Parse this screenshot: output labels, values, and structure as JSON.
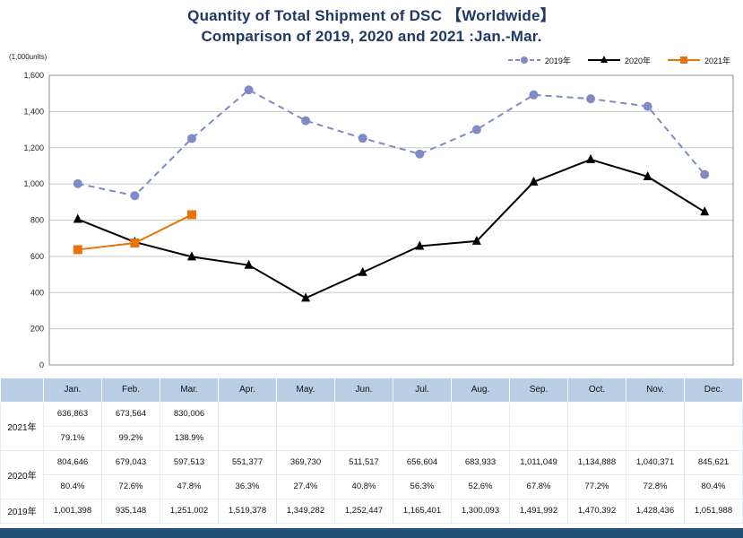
{
  "title": {
    "line1": "Quantity of Total Shipment of DSC 【Worldwide】",
    "line2": "Comparison of 2019, 2020 and 2021 :Jan.-Mar."
  },
  "axis_unit_label": "(1,000units)",
  "colors": {
    "series_2019": "#7E8BC8",
    "series_2020": "#000000",
    "series_2021": "#E8730C",
    "table_header_bg": "#B9CDE5",
    "title_text": "#1F3864",
    "footer_strip": "#1F4E79",
    "grid_line": "#C9C9C9",
    "plot_border": "#8C8C8C"
  },
  "chart_data": {
    "type": "line",
    "title": "Quantity of Total Shipment of DSC 【Worldwide】 Comparison of 2019, 2020 and 2021 :Jan.-Mar.",
    "categories": [
      "Jan.",
      "Feb.",
      "Mar.",
      "Apr.",
      "May.",
      "Jun.",
      "Jul.",
      "Aug.",
      "Sep.",
      "Oct.",
      "Nov.",
      "Dec."
    ],
    "ylabel": "(1,000units)",
    "ylim": [
      0,
      1600
    ],
    "ytick_interval": 200,
    "grid": true,
    "legend_position": "top-right",
    "series": [
      {
        "name": "2019年",
        "color": "#7E8BC8",
        "style": "dashed",
        "marker": "circle",
        "values": [
          1001.398,
          935.148,
          1251.002,
          1519.378,
          1349.282,
          1252.447,
          1165.401,
          1300.093,
          1491.992,
          1470.392,
          1428.436,
          1051.988
        ]
      },
      {
        "name": "2020年",
        "color": "#000000",
        "style": "solid",
        "marker": "triangle",
        "values": [
          804.646,
          679.043,
          597.513,
          551.377,
          369.73,
          511.517,
          656.604,
          683.933,
          1011.049,
          1134.888,
          1040.371,
          845.621
        ]
      },
      {
        "name": "2021年",
        "color": "#E8730C",
        "style": "solid",
        "marker": "square",
        "values": [
          636.863,
          673.564,
          830.006,
          null,
          null,
          null,
          null,
          null,
          null,
          null,
          null,
          null
        ]
      }
    ]
  },
  "table": {
    "corner_label": "",
    "months": [
      "Jan.",
      "Feb.",
      "Mar.",
      "Apr.",
      "May.",
      "Jun.",
      "Jul.",
      "Aug.",
      "Sep.",
      "Oct.",
      "Nov.",
      "Dec."
    ],
    "rows": [
      {
        "label": "2021年",
        "values": [
          "636,863",
          "673,564",
          "830,006",
          "",
          "",
          "",
          "",
          "",
          "",
          "",
          "",
          ""
        ],
        "percents": [
          "79.1%",
          "99.2%",
          "138.9%",
          "",
          "",
          "",
          "",
          "",
          "",
          "",
          "",
          ""
        ]
      },
      {
        "label": "2020年",
        "values": [
          "804,646",
          "679,043",
          "597,513",
          "551,377",
          "369,730",
          "511,517",
          "656,604",
          "683,933",
          "1,011,049",
          "1,134,888",
          "1,040,371",
          "845,621"
        ],
        "percents": [
          "80.4%",
          "72.6%",
          "47.8%",
          "36.3%",
          "27.4%",
          "40.8%",
          "56.3%",
          "52.6%",
          "67.8%",
          "77.2%",
          "72.8%",
          "80.4%"
        ]
      },
      {
        "label": "2019年",
        "values": [
          "1,001,398",
          "935,148",
          "1,251,002",
          "1,519,378",
          "1,349,282",
          "1,252,447",
          "1,165,401",
          "1,300,093",
          "1,491,992",
          "1,470,392",
          "1,428,436",
          "1,051,988"
        ],
        "percents": null
      }
    ]
  }
}
